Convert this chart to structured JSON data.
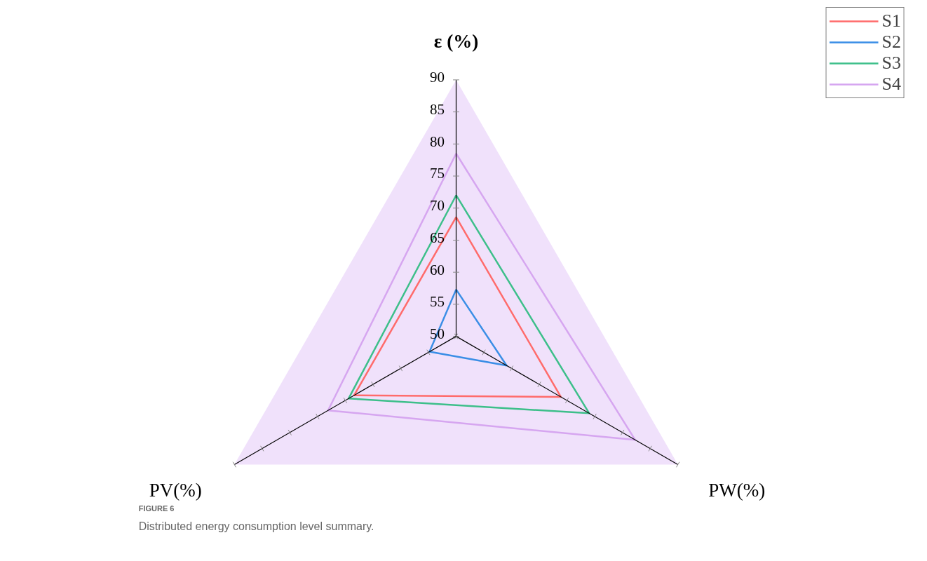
{
  "chart_data": {
    "type": "radar",
    "categories": [
      "ε (%)",
      "PW(%)",
      "PV(%)"
    ],
    "series": [
      {
        "name": "S1",
        "color": "#ff6b6b",
        "values": [
          68.6,
          68.9,
          68.4
        ]
      },
      {
        "name": "S2",
        "color": "#3a8ee6",
        "values": [
          57.3,
          59.1,
          54.8
        ]
      },
      {
        "name": "S3",
        "color": "#3dbf8a",
        "values": [
          72,
          74,
          69.4
        ]
      },
      {
        "name": "S4",
        "color": "#d6a6f0",
        "values": [
          78.5,
          82.3,
          73.1
        ]
      }
    ],
    "ylim": [
      50,
      90
    ],
    "yticks": [
      50,
      55,
      60,
      65,
      70,
      75,
      80,
      85,
      90
    ],
    "legend": "top right",
    "line_style": "solid",
    "annotations": [
      "FIGURE 6",
      "Distributed energy consumption level summary."
    ]
  }
}
